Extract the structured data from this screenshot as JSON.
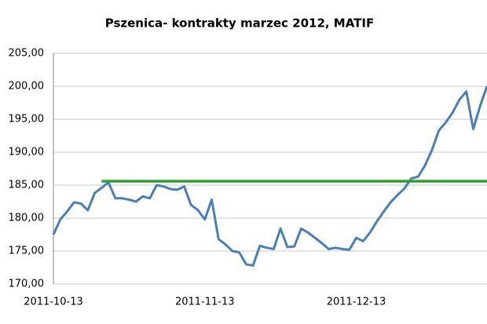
{
  "chart_data": {
    "type": "line",
    "title": "Pszenica- kontrakty marzec 2012, MATIF",
    "categories": [
      "2011-10-13",
      null,
      null,
      null,
      null,
      null,
      null,
      null,
      null,
      null,
      null,
      null,
      null,
      null,
      null,
      null,
      null,
      null,
      null,
      null,
      null,
      null,
      "2011-11-13",
      null,
      null,
      null,
      null,
      null,
      null,
      null,
      null,
      null,
      null,
      null,
      null,
      null,
      null,
      null,
      null,
      null,
      null,
      null,
      null,
      null,
      "2011-12-13",
      null,
      null,
      null,
      null,
      null,
      null,
      null,
      null,
      null,
      null,
      null,
      null,
      null,
      null,
      null,
      null,
      null,
      null,
      null
    ],
    "series": [
      {
        "color": "#4a7ebb",
        "values": [
          177.5,
          179.8,
          181.0,
          182.4,
          182.2,
          181.2,
          183.8,
          184.6,
          185.4,
          183.0,
          183.0,
          182.8,
          182.5,
          183.3,
          183.0,
          185.0,
          184.8,
          184.4,
          184.3,
          184.8,
          182.0,
          181.2,
          179.8,
          182.8,
          176.8,
          176.0,
          175.0,
          174.8,
          173.0,
          172.8,
          175.8,
          175.5,
          175.3,
          178.4,
          175.6,
          175.7,
          178.4,
          177.8,
          177.0,
          176.2,
          175.3,
          175.5,
          175.3,
          175.2,
          177.0,
          176.5,
          177.8,
          179.5,
          181.0,
          182.4,
          183.5,
          184.5,
          186.0,
          186.3,
          188.0,
          190.3,
          193.3,
          194.5,
          196.0,
          198.0,
          199.2,
          193.5,
          197.0,
          200.0
        ]
      },
      {
        "color": "#2ca02c",
        "values": [
          null,
          null,
          null,
          null,
          null,
          null,
          null,
          185.6,
          185.6,
          185.6,
          185.6,
          185.6,
          185.6,
          185.6,
          185.6,
          185.6,
          185.6,
          185.6,
          185.6,
          185.6,
          185.6,
          185.6,
          185.6,
          185.6,
          185.6,
          185.6,
          185.6,
          185.6,
          185.6,
          185.6,
          185.6,
          185.6,
          185.6,
          185.6,
          185.6,
          185.6,
          185.6,
          185.6,
          185.6,
          185.6,
          185.6,
          185.6,
          185.6,
          185.6,
          185.6,
          185.6,
          185.6,
          185.6,
          185.6,
          185.6,
          185.6,
          185.6,
          185.6,
          185.6,
          185.6,
          185.6,
          185.6,
          185.6,
          185.6,
          185.6,
          185.6,
          185.6,
          185.6,
          185.6
        ]
      }
    ],
    "ylim": [
      170,
      205
    ],
    "yticks": [
      {
        "value": 170,
        "label": "170,00"
      },
      {
        "value": 175,
        "label": "175,00"
      },
      {
        "value": 180,
        "label": "180,00"
      },
      {
        "value": 185,
        "label": "185,00"
      },
      {
        "value": 190,
        "label": "190,00"
      },
      {
        "value": 195,
        "label": "195,00"
      },
      {
        "value": 200,
        "label": "200,00"
      },
      {
        "value": 205,
        "label": "205,00"
      }
    ],
    "grid": true
  }
}
